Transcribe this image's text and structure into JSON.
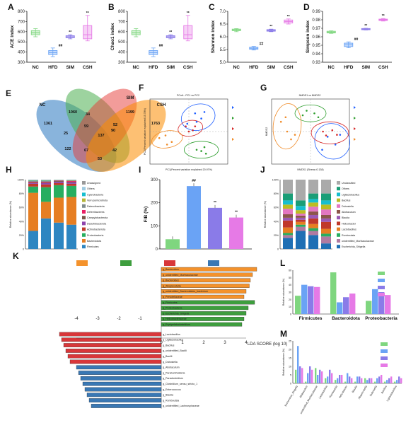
{
  "groups": [
    "NC",
    "HFD",
    "SIM",
    "CSH"
  ],
  "colors": {
    "NC": "#7fd67f",
    "HFD": "#6aa3f5",
    "SIM": "#8a7be8",
    "CSH": "#e67ae6"
  },
  "panels": {
    "A": {
      "letter": "A",
      "ylabel": "ACE index",
      "yticks": [
        "300",
        "400",
        "500",
        "600",
        "700",
        "800"
      ],
      "ylim": [
        300,
        800
      ],
      "boxes": [
        {
          "g": "NC",
          "q1": 570,
          "med": 590,
          "q3": 610,
          "lo": 550,
          "hi": 630
        },
        {
          "g": "HFD",
          "q1": 375,
          "med": 395,
          "q3": 415,
          "lo": 355,
          "hi": 440
        },
        {
          "g": "SIM",
          "q1": 540,
          "med": 550,
          "q3": 560,
          "lo": 530,
          "hi": 570
        },
        {
          "g": "CSH",
          "q1": 530,
          "med": 570,
          "q3": 660,
          "lo": 510,
          "hi": 760
        }
      ],
      "sig": [
        "",
        "##",
        "**",
        "**"
      ]
    },
    "B": {
      "letter": "B",
      "ylabel": "Chao1 index",
      "yticks": [
        "300",
        "400",
        "500",
        "600",
        "700",
        "800"
      ],
      "ylim": [
        300,
        800
      ],
      "boxes": [
        {
          "g": "NC",
          "q1": 570,
          "med": 590,
          "q3": 610,
          "lo": 550,
          "hi": 630
        },
        {
          "g": "HFD",
          "q1": 375,
          "med": 395,
          "q3": 415,
          "lo": 355,
          "hi": 440
        },
        {
          "g": "SIM",
          "q1": 540,
          "med": 550,
          "q3": 560,
          "lo": 530,
          "hi": 570
        },
        {
          "g": "CSH",
          "q1": 530,
          "med": 570,
          "q3": 660,
          "lo": 510,
          "hi": 760
        }
      ],
      "sig": [
        "",
        "##",
        "**",
        "**"
      ]
    },
    "C": {
      "letter": "C",
      "ylabel": "Shannon index",
      "yticks": [
        "5.0",
        "5.5",
        "6.0",
        "6.5",
        "7.0"
      ],
      "ylim": [
        5.0,
        7.0
      ],
      "boxes": [
        {
          "g": "NC",
          "q1": 6.24,
          "med": 6.27,
          "q3": 6.3,
          "lo": 6.2,
          "hi": 6.32
        },
        {
          "g": "HFD",
          "q1": 5.51,
          "med": 5.55,
          "q3": 5.59,
          "lo": 5.48,
          "hi": 5.62
        },
        {
          "g": "SIM",
          "q1": 6.22,
          "med": 6.25,
          "q3": 6.28,
          "lo": 6.2,
          "hi": 6.3
        },
        {
          "g": "CSH",
          "q1": 6.54,
          "med": 6.6,
          "q3": 6.66,
          "lo": 6.5,
          "hi": 6.7
        }
      ],
      "sig": [
        "",
        "##",
        "**",
        "**"
      ]
    },
    "D": {
      "letter": "D",
      "ylabel": "Simpson index",
      "yticks": [
        "0.93",
        "0.94",
        "0.95",
        "0.96",
        "0.97",
        "0.98",
        "0.99"
      ],
      "ylim": [
        0.93,
        0.99
      ],
      "boxes": [
        {
          "g": "NC",
          "q1": 0.9645,
          "med": 0.9655,
          "q3": 0.9665,
          "lo": 0.964,
          "hi": 0.967
        },
        {
          "g": "HFD",
          "q1": 0.9485,
          "med": 0.9505,
          "q3": 0.9525,
          "lo": 0.947,
          "hi": 0.954
        },
        {
          "g": "SIM",
          "q1": 0.9683,
          "med": 0.969,
          "q3": 0.9697,
          "lo": 0.968,
          "hi": 0.97
        },
        {
          "g": "CSH",
          "q1": 0.9792,
          "med": 0.98,
          "q3": 0.9808,
          "lo": 0.9785,
          "hi": 0.9815
        }
      ],
      "sig": [
        "",
        "##",
        "**",
        "**"
      ]
    },
    "E": {
      "letter": "E",
      "labels": {
        "NC": "NC",
        "HFD": "HFD",
        "SIM": "SIM",
        "CSH": "CSH"
      },
      "numbers": [
        "1361",
        "1060",
        "1199",
        "1763",
        "25",
        "34",
        "90",
        "59",
        "137",
        "52",
        "122",
        "67",
        "42",
        "53"
      ]
    },
    "F": {
      "letter": "F",
      "title": "PCoA - PC1 vs PC2",
      "xlabel": "PC1(Percent variation explained 20.97%)",
      "ylabel": "PC2(Percent variation explained 15.78%)"
    },
    "G": {
      "letter": "G",
      "title": "NMDS1 vs NMDS2",
      "xlabel": "NMDS1 (Stress=0.138)",
      "ylabel": "NMDS2"
    },
    "H": {
      "letter": "H",
      "ylabel": "Relative abundance (%)",
      "yticks": [
        "0",
        "20%",
        "40%",
        "60%",
        "80%",
        "100%"
      ],
      "taxa": [
        "Unassigned",
        "Others",
        "Cyanobacteria",
        "Verrucomicrobiota",
        "Patescibacteria",
        "Deferribacteres",
        "Campylobacterota",
        "Desulfobacterota",
        "Actinobacteriota",
        "Proteobacteria",
        "Bacteroidota",
        "Firmicutes"
      ],
      "taxa_colors": [
        "#9b59b6",
        "#16a085",
        "#7f8c8d",
        "#e67e22",
        "#f1c40f",
        "#1abc9c",
        "#c0392b",
        "#8e44ad",
        "#2c3e50",
        "#d35400",
        "#e67e22",
        "#2e86c1"
      ]
    },
    "I": {
      "letter": "I",
      "ylabel": "F/B (%)",
      "yticks": [
        "0",
        "100",
        "200",
        "300"
      ],
      "values": [
        42,
        272,
        178,
        136
      ],
      "sig": [
        "",
        "##",
        "**",
        "**"
      ]
    },
    "J": {
      "letter": "J",
      "ylabel": "Relative abundance (%)",
      "yticks": [
        "0",
        "20%",
        "40%",
        "60%",
        "80%",
        "100%"
      ],
      "taxa": [
        "Unclassified",
        "Others",
        "Ligilactobacillus",
        "Bacillus",
        "Dubosiella",
        "Allobaculum",
        "Blautia",
        "Helicobacter",
        "Lactobacillus",
        "Romboutsia",
        "unidentified_Muribaculaceae",
        "Escherichia_Shigella"
      ]
    },
    "K": {
      "letter": "K",
      "xlabel": "LDA SCORE (log 10)",
      "legend": [
        "NC",
        "HFD",
        "SIM",
        "CSH"
      ],
      "xticks": [
        "-4",
        "-3",
        "-2",
        "-1",
        "0",
        "1",
        "2",
        "3",
        "4"
      ],
      "bars": [
        {
          "name": "g_Bacteroides",
          "v": 4.5,
          "g": "NC"
        },
        {
          "name": "g_unidentified_Muribaculaceae",
          "v": 4.3,
          "g": "NC"
        },
        {
          "name": "g_Bacteroides",
          "v": 4.2,
          "g": "NC"
        },
        {
          "name": "g_Alloprevotella",
          "v": 4.15,
          "g": "NC"
        },
        {
          "name": "g_unidentified_Bacteroidales_bacterium",
          "v": 4.0,
          "g": "NC"
        },
        {
          "name": "g_Prevotellaceae",
          "v": 3.9,
          "g": "NC"
        },
        {
          "name": "g_Firmicutes",
          "v": 4.4,
          "g": "HFD"
        },
        {
          "name": "g_Proteobacteria",
          "v": 4.1,
          "g": "HFD"
        },
        {
          "name": "g_Escherichia_Shigella",
          "v": 4.0,
          "g": "HFD"
        },
        {
          "name": "g_Helicobacteraceae",
          "v": 3.9,
          "g": "HFD"
        },
        {
          "name": "g_Erysipelatoclostridium",
          "v": 3.8,
          "g": "HFD"
        },
        {
          "name": "g_Lactobacillus",
          "v": -4.8,
          "g": "SIM"
        },
        {
          "name": "g_Ligilactobacillus",
          "v": -4.7,
          "g": "SIM"
        },
        {
          "name": "g_Bacillus",
          "v": -4.6,
          "g": "SIM"
        },
        {
          "name": "g_unidentified_Bacilli",
          "v": -4.5,
          "g": "SIM"
        },
        {
          "name": "g_Bacilli",
          "v": -4.4,
          "g": "SIM"
        },
        {
          "name": "g_Dubosiella",
          "v": -4.3,
          "g": "SIM"
        },
        {
          "name": "g_Allobaculum",
          "v": -4.0,
          "g": "CSH"
        },
        {
          "name": "g_Paraburkholderia",
          "v": -3.9,
          "g": "CSH"
        },
        {
          "name": "g_Paraclostridium",
          "v": -3.8,
          "g": "CSH"
        },
        {
          "name": "g_Clostridium_sensu_stricto_1",
          "v": -3.7,
          "g": "CSH"
        },
        {
          "name": "g_Enterococcus",
          "v": -3.6,
          "g": "CSH"
        },
        {
          "name": "g_Blautia",
          "v": -3.5,
          "g": "CSH"
        },
        {
          "name": "g_Romboutsia",
          "v": -3.4,
          "g": "CSH"
        },
        {
          "name": "g_unidentified_Lachnospiraceae",
          "v": -3.3,
          "g": "CSH"
        }
      ]
    },
    "L": {
      "letter": "L",
      "ylabel": "Relative abundance (%)",
      "yticks": [
        "0",
        "10",
        "20",
        "30",
        "40",
        "50",
        "60"
      ],
      "categories": [
        "Firmicutes",
        "Bacteroidota",
        "Proteobacteria"
      ],
      "series": [
        {
          "name": "NC",
          "values": [
            25,
            57,
            18
          ]
        },
        {
          "name": "HFD",
          "values": [
            40,
            16,
            34
          ]
        },
        {
          "name": "SIM",
          "values": [
            38,
            23,
            30
          ]
        },
        {
          "name": "CSH",
          "values": [
            37,
            28,
            26
          ]
        }
      ],
      "sig": [
        "##",
        "**",
        "**",
        "##",
        "**",
        "**",
        "##",
        "**",
        "**"
      ]
    },
    "M": {
      "letter": "M",
      "ylabel": "Relative abundance (%)",
      "yticks": [
        "0",
        "5",
        "10",
        "15",
        "20",
        "25"
      ],
      "categories": [
        "Escherichia_Shigella",
        "Allobaculum",
        "unidentified_Muribaculaceae",
        "Lactobacillus",
        "Romboutsia",
        "Helicobacter",
        "Blautia",
        "Alloprevotella",
        "Dubosiella",
        "Bacillus",
        "Ligilactobacillus"
      ],
      "series": [
        {
          "name": "NC",
          "values": [
            8,
            1,
            9,
            3,
            2,
            1,
            1,
            3,
            1,
            1,
            1
          ]
        },
        {
          "name": "HFD",
          "values": [
            22,
            6,
            5,
            4,
            3,
            6,
            4,
            2,
            3,
            2,
            2
          ]
        },
        {
          "name": "SIM",
          "values": [
            10,
            10,
            8,
            8,
            5,
            4,
            4,
            3,
            4,
            3,
            4
          ]
        },
        {
          "name": "CSH",
          "values": [
            9,
            8,
            7,
            6,
            5,
            3,
            3,
            3,
            5,
            4,
            3
          ]
        }
      ]
    }
  }
}
